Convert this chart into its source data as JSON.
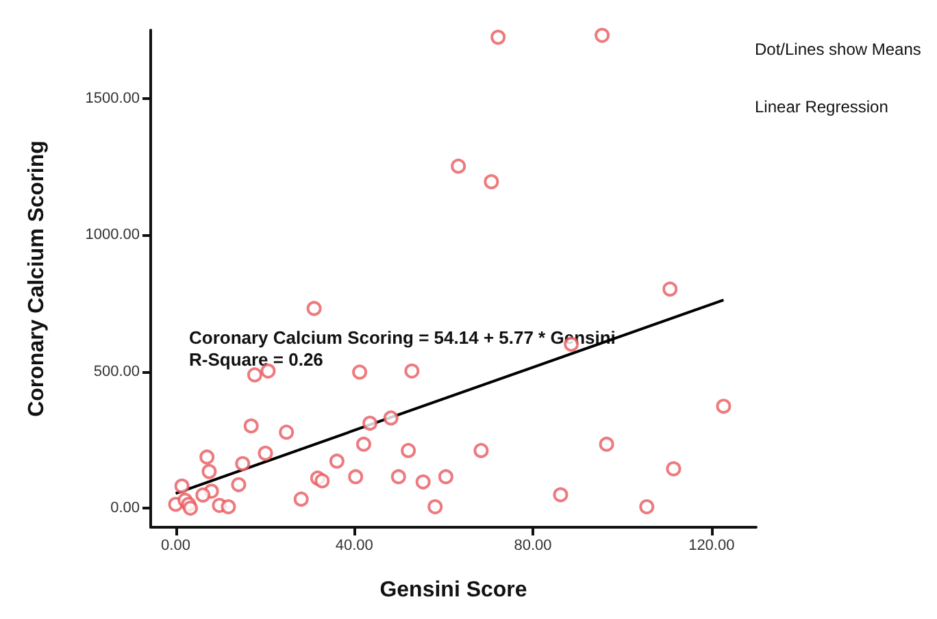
{
  "chart_data": {
    "type": "scatter",
    "xlabel": "Gensini Score",
    "ylabel": "Coronary Calcium Scoring",
    "grid": false,
    "xlim": [
      -5.6,
      130
    ],
    "ylim": [
      -70,
      1750
    ],
    "xticks": [
      {
        "value": 0,
        "label": "0.00"
      },
      {
        "value": 40,
        "label": "40.00"
      },
      {
        "value": 80,
        "label": "80.00"
      },
      {
        "value": 120,
        "label": "120.00"
      }
    ],
    "yticks": [
      {
        "value": 0,
        "label": "0.00"
      },
      {
        "value": 500,
        "label": "500.00"
      },
      {
        "value": 1000,
        "label": "1000.00"
      },
      {
        "value": 1500,
        "label": "1500.00"
      }
    ],
    "annotations": [
      "Coronary Calcium Scoring = 54.14 + 5.77 * Gensini",
      "R-Square = 0.26",
      "Dot/Lines show Means",
      "Linear Regression"
    ],
    "series": [
      {
        "marker": "circle",
        "color": "#e8595e",
        "x": [
          0,
          1.4,
          2.1,
          2.9,
          3.3,
          7.0,
          7.5,
          8.0,
          6.1,
          9.8,
          11.8,
          14.1,
          15.0,
          16.9,
          17.7,
          20.7,
          20.1,
          24.8,
          28.1,
          31.8,
          32.8,
          36.1,
          40.3,
          41.2,
          42.1,
          43.5,
          48.2,
          49.9,
          52.9,
          52.1,
          55.4,
          60.5,
          58.1,
          68.4,
          88.6,
          86.2,
          96.5,
          105.5,
          111.5,
          122.7,
          72.2,
          95.5,
          63.3,
          70.7,
          31.0,
          110.7
        ],
        "values": [
          14,
          81,
          29,
          14,
          0,
          187,
          134,
          62,
          48,
          10,
          5,
          86,
          163,
          301,
          488,
          502,
          201,
          278,
          33,
          110,
          100,
          172,
          115,
          498,
          234,
          311,
          330,
          115,
          502,
          211,
          96,
          115,
          5,
          211,
          600,
          49,
          234,
          5,
          144,
          373,
          1724,
          1731,
          1252,
          1195,
          731,
          802
        ]
      },
      {
        "type": "line",
        "marker": "none",
        "color": "#000000",
        "x": [
          0,
          122.7
        ],
        "values": [
          54,
          762
        ]
      }
    ]
  }
}
